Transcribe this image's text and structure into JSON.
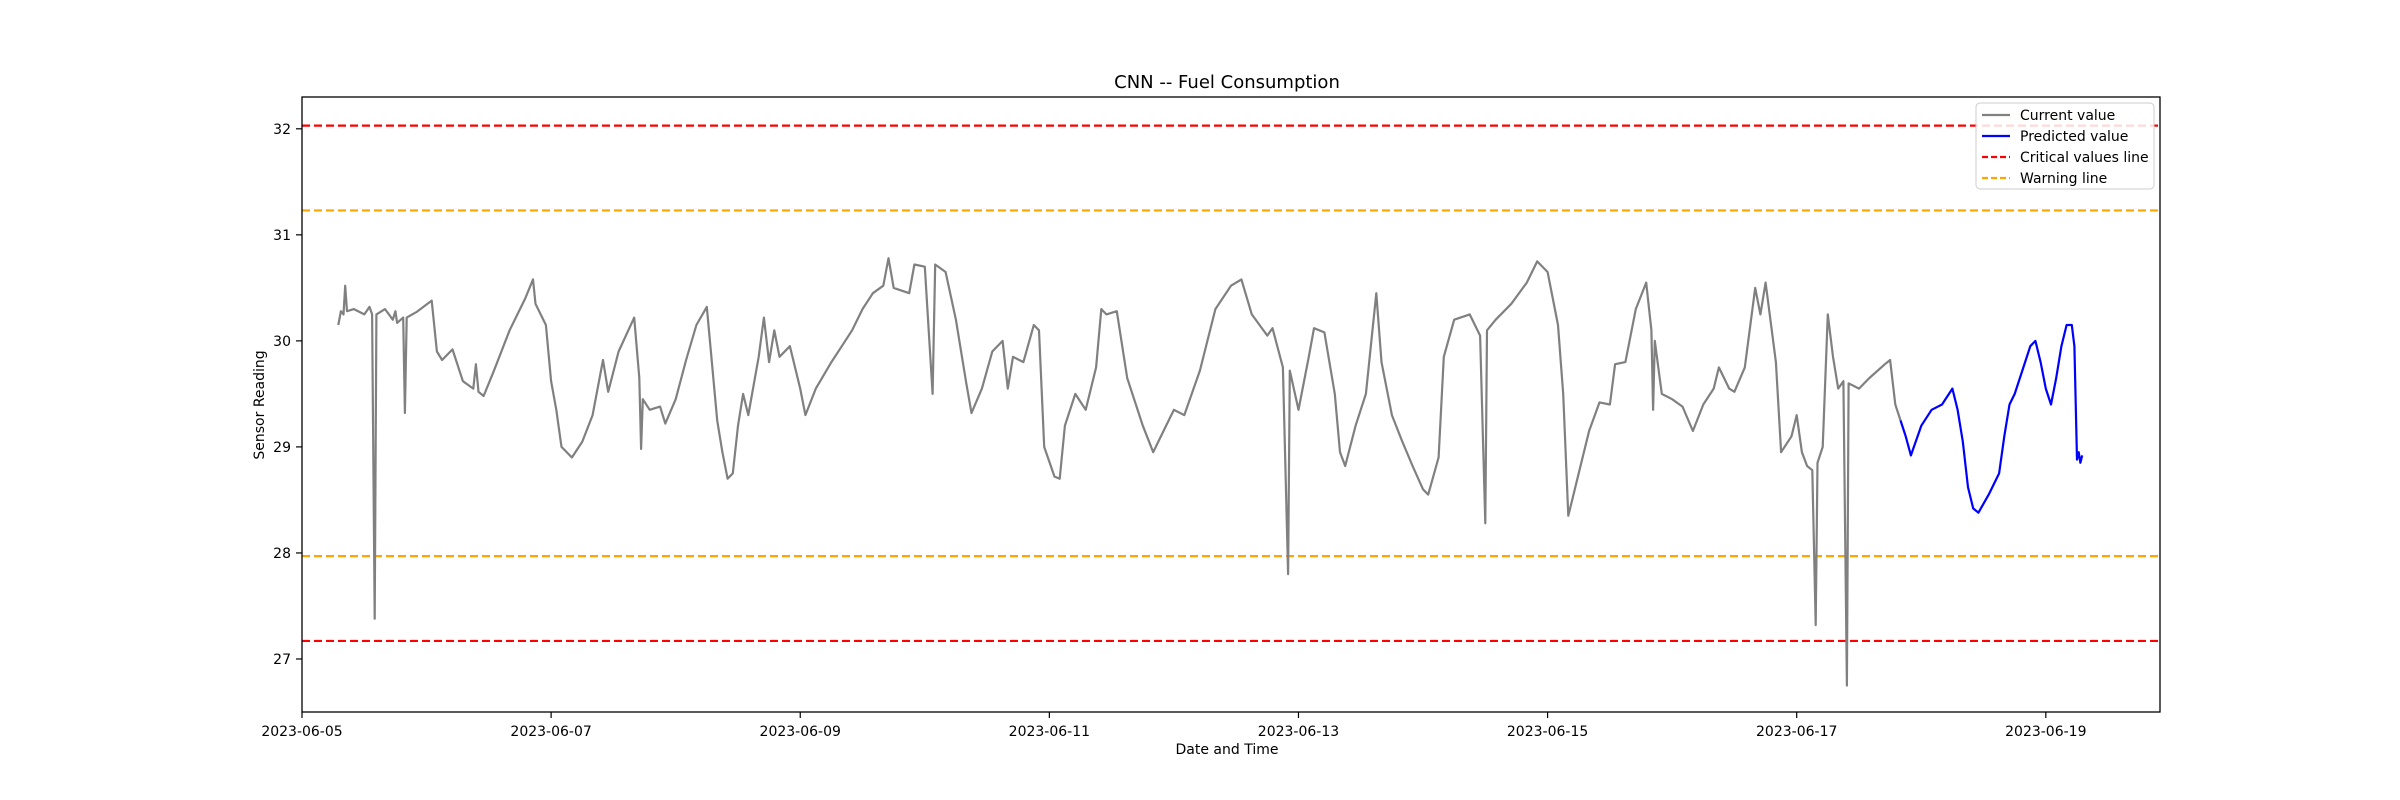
{
  "chart_data": {
    "type": "line",
    "title": "CNN -- Fuel Consumption",
    "xlabel": "Date and Time",
    "ylabel": "Sensor Reading",
    "x_axis": {
      "type": "date",
      "range": [
        "2023-06-05T00:00",
        "2023-06-19T22:00"
      ],
      "ticks": [
        "2023-06-05",
        "2023-06-07",
        "2023-06-09",
        "2023-06-11",
        "2023-06-13",
        "2023-06-15",
        "2023-06-17",
        "2023-06-19"
      ]
    },
    "y_axis": {
      "range": [
        26.5,
        32.3
      ],
      "ticks": [
        27,
        28,
        29,
        30,
        31,
        32
      ]
    },
    "grid": false,
    "legend_position": "top-right",
    "legend": [
      {
        "label": "Current value",
        "color": "#808080",
        "style": "solid"
      },
      {
        "label": "Predicted value",
        "color": "#0000ff",
        "style": "solid"
      },
      {
        "label": "Critical values line",
        "color": "#ff0000",
        "style": "dashed"
      },
      {
        "label": "Warning line",
        "color": "#ffa500",
        "style": "dashed"
      }
    ],
    "reference_lines": [
      {
        "name": "Critical values line",
        "y": 32.03,
        "color": "#ff0000"
      },
      {
        "name": "Critical values line",
        "y": 27.17,
        "color": "#ff0000"
      },
      {
        "name": "Warning line",
        "y": 31.23,
        "color": "#ffa500"
      },
      {
        "name": "Warning line",
        "y": 27.97,
        "color": "#ffa500"
      }
    ],
    "series": [
      {
        "name": "Current value",
        "color": "#808080",
        "points": [
          [
            "2023-06-05T07:00",
            30.15
          ],
          [
            "2023-06-05T07:30",
            30.28
          ],
          [
            "2023-06-05T08:00",
            30.25
          ],
          [
            "2023-06-05T08:20",
            30.52
          ],
          [
            "2023-06-05T08:40",
            30.28
          ],
          [
            "2023-06-05T10:00",
            30.3
          ],
          [
            "2023-06-05T12:00",
            30.25
          ],
          [
            "2023-06-05T13:00",
            30.32
          ],
          [
            "2023-06-05T13:30",
            30.25
          ],
          [
            "2023-06-05T14:00",
            27.38
          ],
          [
            "2023-06-05T14:20",
            30.25
          ],
          [
            "2023-06-05T16:00",
            30.3
          ],
          [
            "2023-06-05T17:30",
            30.2
          ],
          [
            "2023-06-05T18:00",
            30.28
          ],
          [
            "2023-06-05T18:20",
            30.17
          ],
          [
            "2023-06-05T19:30",
            30.22
          ],
          [
            "2023-06-05T19:50",
            29.32
          ],
          [
            "2023-06-05T20:10",
            30.22
          ],
          [
            "2023-06-05T22:00",
            30.27
          ],
          [
            "2023-06-06T01:00",
            30.38
          ],
          [
            "2023-06-06T02:00",
            29.9
          ],
          [
            "2023-06-06T03:00",
            29.82
          ],
          [
            "2023-06-06T05:00",
            29.92
          ],
          [
            "2023-06-06T07:00",
            29.62
          ],
          [
            "2023-06-06T09:00",
            29.55
          ],
          [
            "2023-06-06T09:30",
            29.78
          ],
          [
            "2023-06-06T10:00",
            29.52
          ],
          [
            "2023-06-06T11:00",
            29.48
          ],
          [
            "2023-06-06T13:00",
            29.72
          ],
          [
            "2023-06-06T16:00",
            30.1
          ],
          [
            "2023-06-06T19:00",
            30.4
          ],
          [
            "2023-06-06T20:30",
            30.58
          ],
          [
            "2023-06-06T21:00",
            30.35
          ],
          [
            "2023-06-06T23:00",
            30.15
          ],
          [
            "2023-06-07T00:00",
            29.62
          ],
          [
            "2023-06-07T01:00",
            29.35
          ],
          [
            "2023-06-07T02:00",
            29.0
          ],
          [
            "2023-06-07T04:00",
            28.9
          ],
          [
            "2023-06-07T06:00",
            29.05
          ],
          [
            "2023-06-07T08:00",
            29.3
          ],
          [
            "2023-06-07T10:00",
            29.82
          ],
          [
            "2023-06-07T11:00",
            29.52
          ],
          [
            "2023-06-07T13:00",
            29.9
          ],
          [
            "2023-06-07T16:00",
            30.22
          ],
          [
            "2023-06-07T17:00",
            29.65
          ],
          [
            "2023-06-07T17:20",
            28.98
          ],
          [
            "2023-06-07T17:40",
            29.45
          ],
          [
            "2023-06-07T19:00",
            29.35
          ],
          [
            "2023-06-07T21:00",
            29.38
          ],
          [
            "2023-06-07T22:00",
            29.22
          ],
          [
            "2023-06-08T00:00",
            29.45
          ],
          [
            "2023-06-08T02:00",
            29.82
          ],
          [
            "2023-06-08T04:00",
            30.15
          ],
          [
            "2023-06-08T06:00",
            30.32
          ],
          [
            "2023-06-08T08:00",
            29.25
          ],
          [
            "2023-06-08T09:00",
            28.95
          ],
          [
            "2023-06-08T10:00",
            28.7
          ],
          [
            "2023-06-08T11:00",
            28.75
          ],
          [
            "2023-06-08T12:00",
            29.2
          ],
          [
            "2023-06-08T13:00",
            29.5
          ],
          [
            "2023-06-08T14:00",
            29.3
          ],
          [
            "2023-06-08T16:00",
            29.85
          ],
          [
            "2023-06-08T17:00",
            30.22
          ],
          [
            "2023-06-08T18:00",
            29.8
          ],
          [
            "2023-06-08T19:00",
            30.1
          ],
          [
            "2023-06-08T20:00",
            29.85
          ],
          [
            "2023-06-08T22:00",
            29.95
          ],
          [
            "2023-06-09T00:00",
            29.55
          ],
          [
            "2023-06-09T01:00",
            29.3
          ],
          [
            "2023-06-09T03:00",
            29.55
          ],
          [
            "2023-06-09T06:00",
            29.8
          ],
          [
            "2023-06-09T08:00",
            29.95
          ],
          [
            "2023-06-09T10:00",
            30.1
          ],
          [
            "2023-06-09T12:00",
            30.3
          ],
          [
            "2023-06-09T14:00",
            30.45
          ],
          [
            "2023-06-09T16:00",
            30.52
          ],
          [
            "2023-06-09T17:00",
            30.78
          ],
          [
            "2023-06-09T18:00",
            30.5
          ],
          [
            "2023-06-09T21:00",
            30.45
          ],
          [
            "2023-06-09T22:00",
            30.72
          ],
          [
            "2023-06-10T00:00",
            30.7
          ],
          [
            "2023-06-10T01:30",
            29.5
          ],
          [
            "2023-06-10T02:00",
            30.72
          ],
          [
            "2023-06-10T04:00",
            30.65
          ],
          [
            "2023-06-10T06:00",
            30.2
          ],
          [
            "2023-06-10T08:00",
            29.6
          ],
          [
            "2023-06-10T09:00",
            29.32
          ],
          [
            "2023-06-10T11:00",
            29.55
          ],
          [
            "2023-06-10T13:00",
            29.9
          ],
          [
            "2023-06-10T15:00",
            30.0
          ],
          [
            "2023-06-10T16:00",
            29.55
          ],
          [
            "2023-06-10T17:00",
            29.85
          ],
          [
            "2023-06-10T19:00",
            29.8
          ],
          [
            "2023-06-10T21:00",
            30.15
          ],
          [
            "2023-06-10T22:00",
            30.1
          ],
          [
            "2023-06-10T23:00",
            29.0
          ],
          [
            "2023-06-11T01:00",
            28.72
          ],
          [
            "2023-06-11T02:00",
            28.7
          ],
          [
            "2023-06-11T03:00",
            29.2
          ],
          [
            "2023-06-11T05:00",
            29.5
          ],
          [
            "2023-06-11T07:00",
            29.35
          ],
          [
            "2023-06-11T09:00",
            29.75
          ],
          [
            "2023-06-11T10:00",
            30.3
          ],
          [
            "2023-06-11T11:00",
            30.25
          ],
          [
            "2023-06-11T13:00",
            30.28
          ],
          [
            "2023-06-11T15:00",
            29.65
          ],
          [
            "2023-06-11T18:00",
            29.2
          ],
          [
            "2023-06-11T20:00",
            28.95
          ],
          [
            "2023-06-11T22:00",
            29.15
          ],
          [
            "2023-06-12T00:00",
            29.35
          ],
          [
            "2023-06-12T02:00",
            29.3
          ],
          [
            "2023-06-12T05:00",
            29.72
          ],
          [
            "2023-06-12T08:00",
            30.3
          ],
          [
            "2023-06-12T11:00",
            30.52
          ],
          [
            "2023-06-12T13:00",
            30.58
          ],
          [
            "2023-06-12T15:00",
            30.25
          ],
          [
            "2023-06-12T18:00",
            30.05
          ],
          [
            "2023-06-12T19:00",
            30.12
          ],
          [
            "2023-06-12T21:00",
            29.75
          ],
          [
            "2023-06-12T22:00",
            27.8
          ],
          [
            "2023-06-12T22:20",
            29.72
          ],
          [
            "2023-06-13T00:00",
            29.35
          ],
          [
            "2023-06-13T02:00",
            29.85
          ],
          [
            "2023-06-13T03:00",
            30.12
          ],
          [
            "2023-06-13T05:00",
            30.08
          ],
          [
            "2023-06-13T07:00",
            29.5
          ],
          [
            "2023-06-13T08:00",
            28.95
          ],
          [
            "2023-06-13T09:00",
            28.82
          ],
          [
            "2023-06-13T11:00",
            29.2
          ],
          [
            "2023-06-13T13:00",
            29.5
          ],
          [
            "2023-06-13T15:00",
            30.45
          ],
          [
            "2023-06-13T16:00",
            29.8
          ],
          [
            "2023-06-13T18:00",
            29.3
          ],
          [
            "2023-06-13T20:00",
            29.05
          ],
          [
            "2023-06-13T22:00",
            28.82
          ],
          [
            "2023-06-14T00:00",
            28.6
          ],
          [
            "2023-06-14T01:00",
            28.55
          ],
          [
            "2023-06-14T03:00",
            28.9
          ],
          [
            "2023-06-14T04:00",
            29.85
          ],
          [
            "2023-06-14T06:00",
            30.2
          ],
          [
            "2023-06-14T09:00",
            30.25
          ],
          [
            "2023-06-14T11:00",
            30.05
          ],
          [
            "2023-06-14T12:00",
            28.28
          ],
          [
            "2023-06-14T12:20",
            30.1
          ],
          [
            "2023-06-14T14:00",
            30.2
          ],
          [
            "2023-06-14T17:00",
            30.35
          ],
          [
            "2023-06-14T20:00",
            30.55
          ],
          [
            "2023-06-14T22:00",
            30.75
          ],
          [
            "2023-06-15T00:00",
            30.65
          ],
          [
            "2023-06-15T02:00",
            30.15
          ],
          [
            "2023-06-15T03:00",
            29.5
          ],
          [
            "2023-06-15T04:00",
            28.35
          ],
          [
            "2023-06-15T06:00",
            28.75
          ],
          [
            "2023-06-15T08:00",
            29.15
          ],
          [
            "2023-06-15T10:00",
            29.42
          ],
          [
            "2023-06-15T12:00",
            29.4
          ],
          [
            "2023-06-15T13:00",
            29.78
          ],
          [
            "2023-06-15T15:00",
            29.8
          ],
          [
            "2023-06-15T17:00",
            30.3
          ],
          [
            "2023-06-15T19:00",
            30.55
          ],
          [
            "2023-06-15T20:00",
            30.1
          ],
          [
            "2023-06-15T20:20",
            29.35
          ],
          [
            "2023-06-15T20:40",
            30.0
          ],
          [
            "2023-06-15T22:00",
            29.5
          ],
          [
            "2023-06-16T00:00",
            29.45
          ],
          [
            "2023-06-16T02:00",
            29.38
          ],
          [
            "2023-06-16T04:00",
            29.15
          ],
          [
            "2023-06-16T06:00",
            29.4
          ],
          [
            "2023-06-16T08:00",
            29.55
          ],
          [
            "2023-06-16T09:00",
            29.75
          ],
          [
            "2023-06-16T11:00",
            29.55
          ],
          [
            "2023-06-16T12:00",
            29.52
          ],
          [
            "2023-06-16T14:00",
            29.75
          ],
          [
            "2023-06-16T16:00",
            30.5
          ],
          [
            "2023-06-16T17:00",
            30.25
          ],
          [
            "2023-06-16T18:00",
            30.55
          ],
          [
            "2023-06-16T20:00",
            29.8
          ],
          [
            "2023-06-16T21:00",
            28.95
          ],
          [
            "2023-06-16T23:00",
            29.1
          ],
          [
            "2023-06-17T00:00",
            29.3
          ],
          [
            "2023-06-17T01:00",
            28.95
          ],
          [
            "2023-06-17T02:00",
            28.82
          ],
          [
            "2023-06-17T03:00",
            28.78
          ],
          [
            "2023-06-17T03:40",
            27.32
          ],
          [
            "2023-06-17T04:00",
            28.85
          ],
          [
            "2023-06-17T05:00",
            29.0
          ],
          [
            "2023-06-17T06:00",
            30.25
          ],
          [
            "2023-06-17T07:00",
            29.85
          ],
          [
            "2023-06-17T08:00",
            29.55
          ],
          [
            "2023-06-17T09:00",
            29.62
          ],
          [
            "2023-06-17T09:40",
            26.75
          ],
          [
            "2023-06-17T10:00",
            29.6
          ],
          [
            "2023-06-17T12:00",
            29.55
          ],
          [
            "2023-06-17T14:00",
            29.65
          ],
          [
            "2023-06-17T17:00",
            29.78
          ],
          [
            "2023-06-17T18:00",
            29.82
          ],
          [
            "2023-06-17T19:00",
            29.4
          ],
          [
            "2023-06-17T20:00",
            29.25
          ]
        ]
      },
      {
        "name": "Predicted value",
        "color": "#0000ff",
        "points": [
          [
            "2023-06-17T20:00",
            29.25
          ],
          [
            "2023-06-17T21:00",
            29.1
          ],
          [
            "2023-06-17T22:00",
            28.92
          ],
          [
            "2023-06-18T00:00",
            29.2
          ],
          [
            "2023-06-18T02:00",
            29.35
          ],
          [
            "2023-06-18T04:00",
            29.4
          ],
          [
            "2023-06-18T06:00",
            29.55
          ],
          [
            "2023-06-18T07:00",
            29.35
          ],
          [
            "2023-06-18T08:00",
            29.05
          ],
          [
            "2023-06-18T09:00",
            28.62
          ],
          [
            "2023-06-18T10:00",
            28.42
          ],
          [
            "2023-06-18T11:00",
            28.38
          ],
          [
            "2023-06-18T13:00",
            28.55
          ],
          [
            "2023-06-18T15:00",
            28.75
          ],
          [
            "2023-06-18T16:00",
            29.1
          ],
          [
            "2023-06-18T17:00",
            29.4
          ],
          [
            "2023-06-18T18:00",
            29.5
          ],
          [
            "2023-06-18T19:00",
            29.65
          ],
          [
            "2023-06-18T20:00",
            29.8
          ],
          [
            "2023-06-18T21:00",
            29.95
          ],
          [
            "2023-06-18T22:00",
            30.0
          ],
          [
            "2023-06-18T23:00",
            29.8
          ],
          [
            "2023-06-19T00:00",
            29.55
          ],
          [
            "2023-06-19T01:00",
            29.4
          ],
          [
            "2023-06-19T02:00",
            29.65
          ],
          [
            "2023-06-19T03:00",
            29.95
          ],
          [
            "2023-06-19T04:00",
            30.15
          ],
          [
            "2023-06-19T05:00",
            30.15
          ],
          [
            "2023-06-19T05:30",
            29.95
          ],
          [
            "2023-06-19T06:00",
            28.88
          ],
          [
            "2023-06-19T06:20",
            28.95
          ],
          [
            "2023-06-19T06:40",
            28.85
          ],
          [
            "2023-06-19T07:00",
            28.92
          ]
        ]
      }
    ]
  }
}
